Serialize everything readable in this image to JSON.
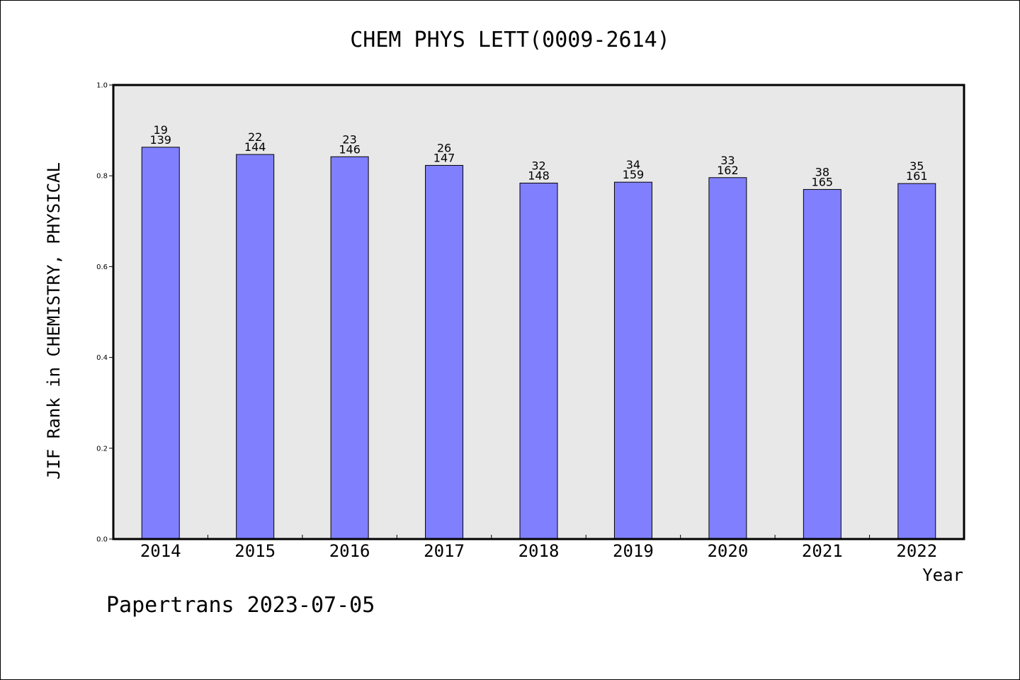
{
  "chart_data": {
    "type": "bar",
    "title": "CHEM PHYS LETT(0009-2614)",
    "xlabel": "Year",
    "ylabel": "JIF Rank in CHEMISTRY, PHYSICAL",
    "ylim": [
      0,
      1
    ],
    "yticks": [
      "0.0",
      "0.2",
      "0.4",
      "0.6",
      "0.8",
      "1.0"
    ],
    "grid": false,
    "categories": [
      "2014",
      "2015",
      "2016",
      "2017",
      "2018",
      "2019",
      "2020",
      "2021",
      "2022"
    ],
    "values": [
      0.863,
      0.847,
      0.842,
      0.823,
      0.784,
      0.786,
      0.796,
      0.77,
      0.783
    ],
    "rank": [
      "19",
      "22",
      "23",
      "26",
      "32",
      "34",
      "33",
      "38",
      "35"
    ],
    "total": [
      "139",
      "144",
      "146",
      "147",
      "148",
      "159",
      "162",
      "165",
      "161"
    ],
    "colors": {
      "bar": "#8080ff",
      "plot_background": "#e8e8e8",
      "border": "#000000"
    }
  },
  "footer": "Papertrans 2023-07-05"
}
